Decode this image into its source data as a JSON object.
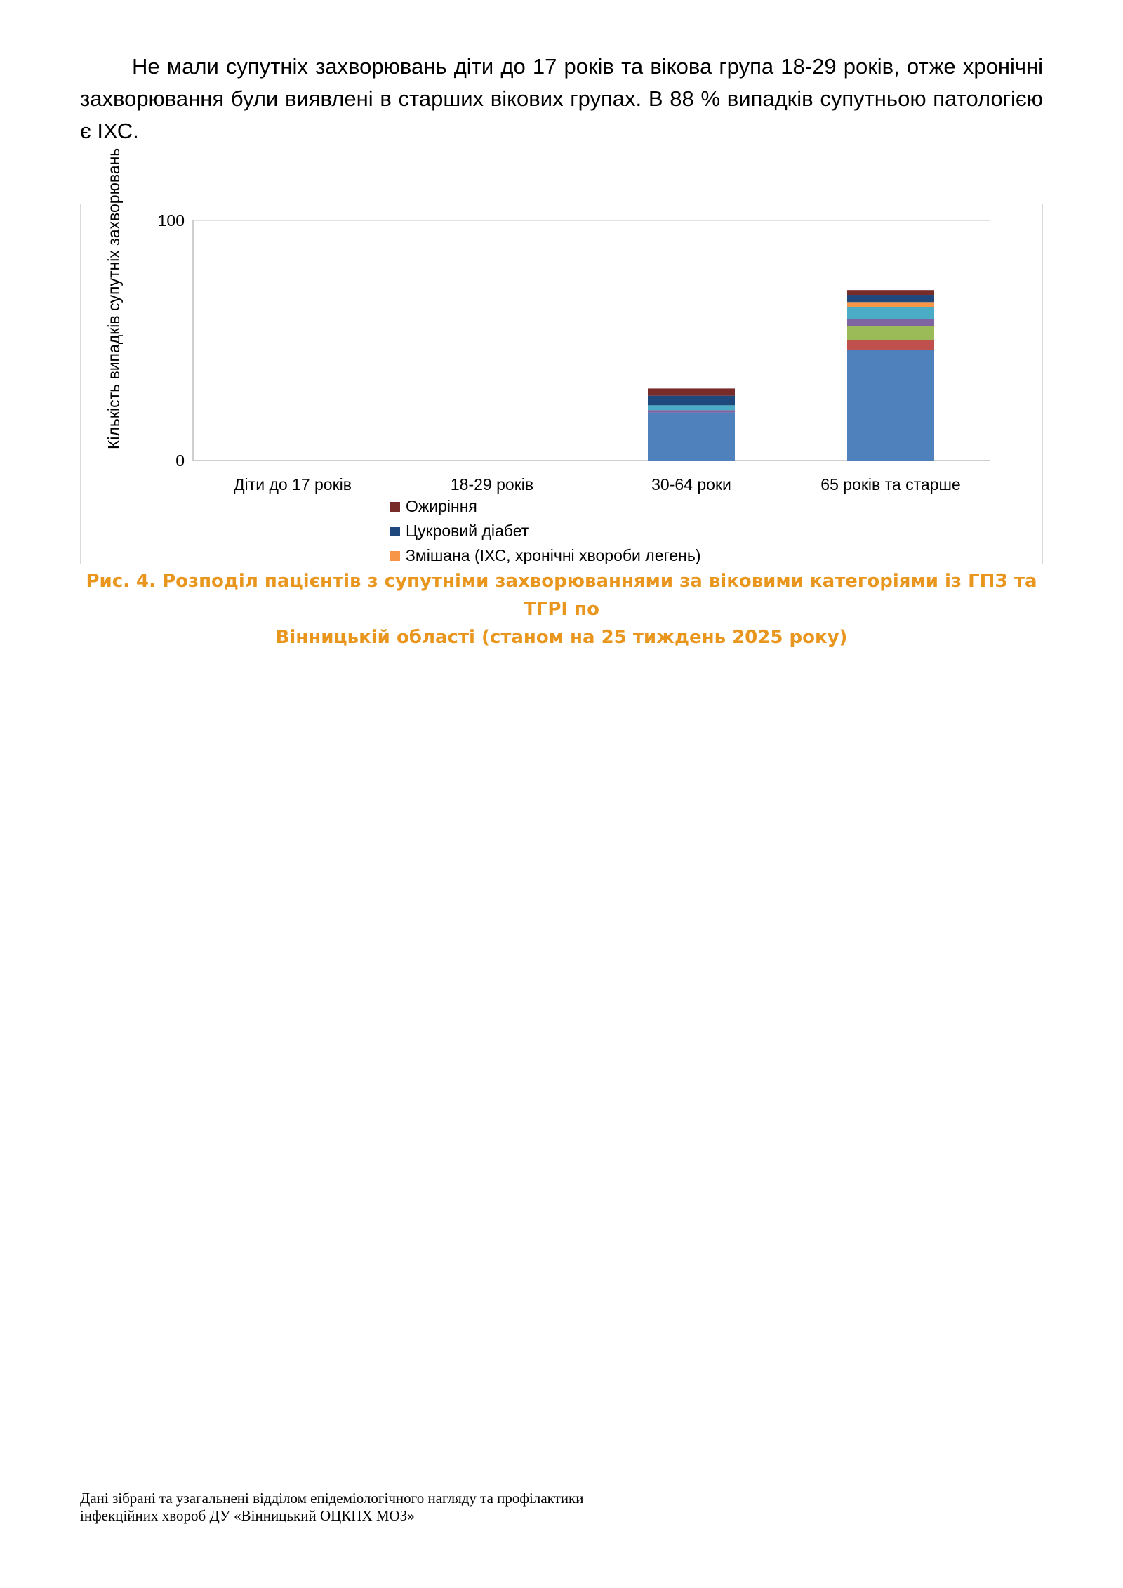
{
  "paragraph": "Не мали супутніх захворювань діти до 17 років та вікова група 18-29 років, отже хронічні захворювання були виявлені в старших вікових групах. В 88 % випадків супутньою патологією є ІХС.",
  "caption_lines": [
    "Рис. 4. Розподіл пацієнтів з супутніми захворюваннями за віковими категоріями із ГПЗ та ТГРІ по",
    "Вінницькій області  (станом на 25 тиждень 2025 року)"
  ],
  "footer_lines": [
    "Дані зібрані та узагальнені відділом епідеміологічного нагляду та профілактики",
    "інфекційних хвороб ДУ «Вінницький ОЦКПХ МОЗ»"
  ],
  "chart_data": {
    "type": "bar",
    "stacked": true,
    "ylabel": "Кількість випадків супутніх захворювань",
    "ylim": [
      0,
      100
    ],
    "yticks": [
      "0",
      "100"
    ],
    "grid": true,
    "legend_position": "bottom",
    "categories": [
      "Діти до 17 років",
      "18-29 років",
      "30-64 роки",
      "65 років та старше"
    ],
    "series": [
      {
        "color": "#4f81bd",
        "values": [
          0,
          0,
          20,
          46
        ]
      },
      {
        "color": "#c0504d",
        "values": [
          0,
          0,
          0,
          4
        ]
      },
      {
        "color": "#9bbb59",
        "values": [
          0,
          0,
          0,
          6
        ]
      },
      {
        "color": "#8064a2",
        "values": [
          0,
          0,
          1,
          3
        ]
      },
      {
        "color": "#4bacc6",
        "values": [
          0,
          0,
          2,
          5
        ]
      },
      {
        "name": "Змішана (ІХС, хронічні хвороби легень)",
        "color": "#f79646",
        "values": [
          0,
          0,
          0,
          2
        ]
      },
      {
        "name": "Цукровий діабет",
        "color": "#1f497d",
        "values": [
          0,
          0,
          4,
          3
        ]
      },
      {
        "name": "Ожиріння",
        "color": "#772c2a",
        "values": [
          0,
          0,
          3,
          2
        ]
      }
    ],
    "legend_order": [
      7,
      6,
      5
    ]
  }
}
